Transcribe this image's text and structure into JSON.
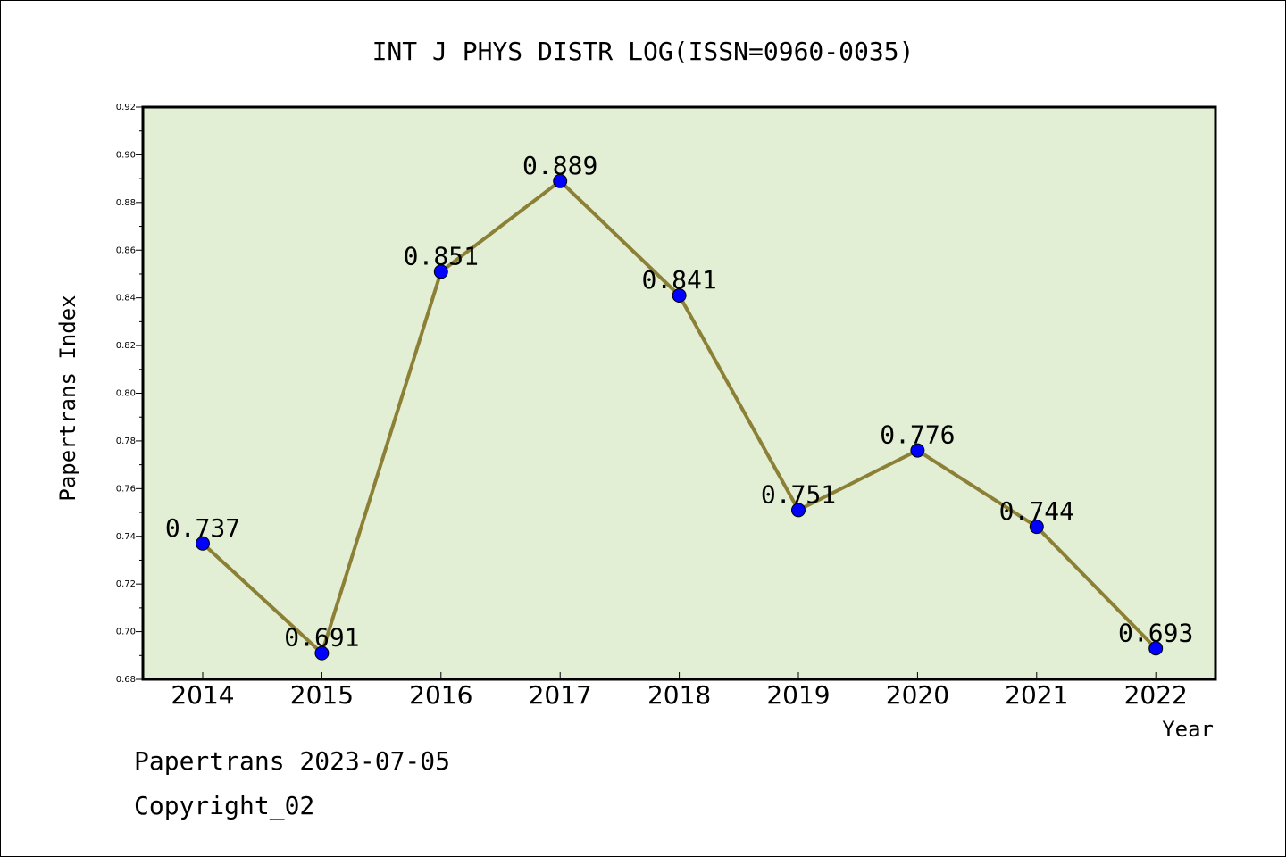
{
  "chart_data": {
    "type": "line",
    "title": "INT J PHYS DISTR LOG(ISSN=0960-0035)",
    "xlabel": "Year",
    "ylabel": "Papertrans Index",
    "categories": [
      "2014",
      "2015",
      "2016",
      "2017",
      "2018",
      "2019",
      "2020",
      "2021",
      "2022"
    ],
    "series": [
      {
        "values": [
          0.737,
          0.691,
          0.851,
          0.889,
          0.841,
          0.751,
          0.776,
          0.744,
          0.693
        ],
        "labels": [
          "0.737",
          "0.691",
          "0.851",
          "0.889",
          "0.841",
          "0.751",
          "0.776",
          "0.744",
          "0.693"
        ]
      }
    ],
    "ylim": [
      0.68,
      0.92
    ],
    "yticks": [
      "0.68",
      "0.70",
      "0.72",
      "0.74",
      "0.76",
      "0.78",
      "0.80",
      "0.82",
      "0.84",
      "0.86",
      "0.88",
      "0.90",
      "0.92"
    ],
    "grid": false,
    "colors": {
      "plot_background": "#e2efd4",
      "line": "#8b8035",
      "marker": "#0000ff"
    }
  },
  "footer": {
    "date_text": "Papertrans 2023-07-05",
    "copyright_text": "Copyright_02"
  }
}
